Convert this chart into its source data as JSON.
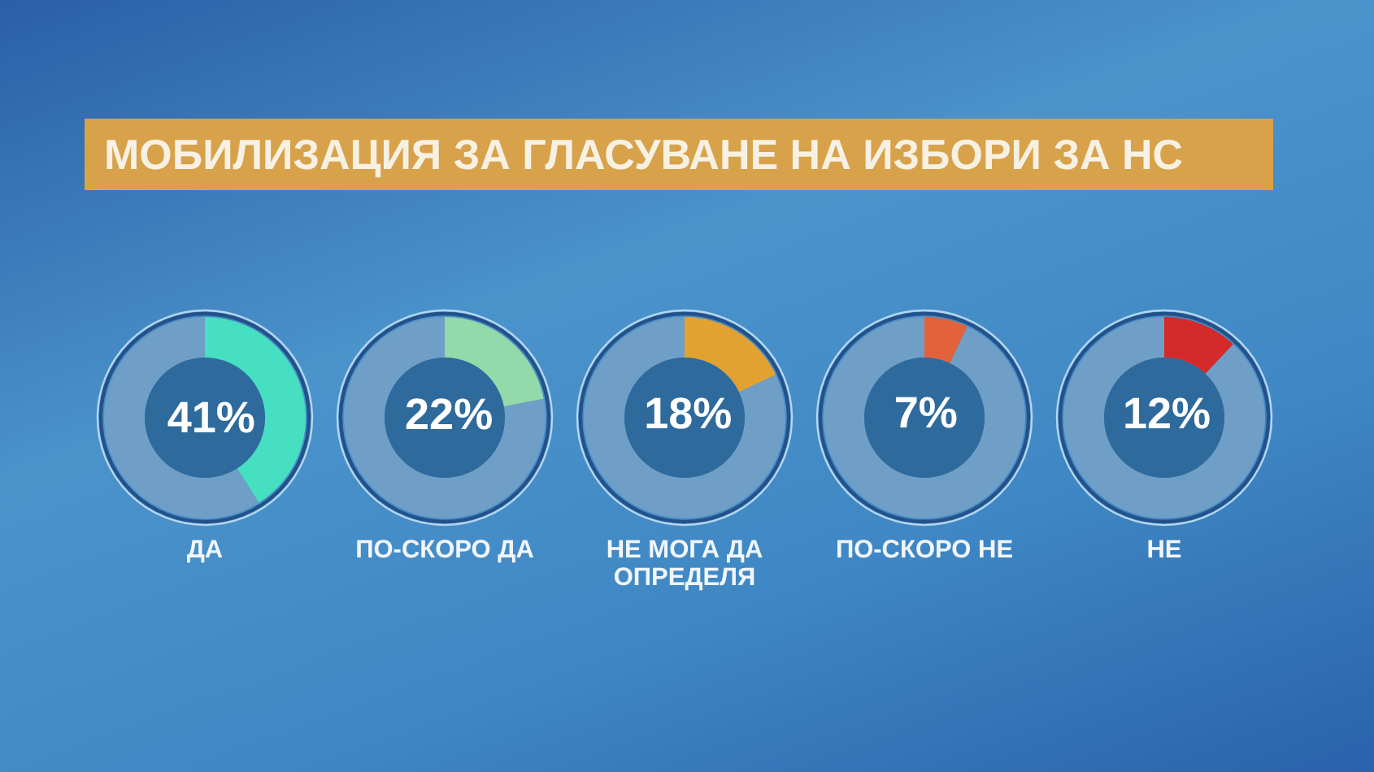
{
  "chart_data": [
    {
      "type": "other",
      "title": "МОБИЛИЗАЦИЯ ЗА ГЛАСУВАНЕ НА ИЗБОРИ ЗА НС"
    },
    {
      "type": "donut",
      "title": "ДА",
      "categories": [
        null,
        null
      ],
      "values": [
        41,
        59
      ],
      "colors": [
        "#46dfc1",
        "#6f9fc7"
      ],
      "value_labels": [
        "41%",
        null
      ]
    },
    {
      "type": "donut",
      "title": "ПО-СКОРО ДА",
      "categories": [
        null,
        null
      ],
      "values": [
        22,
        78
      ],
      "colors": [
        "#93d9a9",
        "#6f9fc7"
      ],
      "value_labels": [
        "22%",
        null
      ]
    },
    {
      "type": "donut",
      "title": "НЕ МОГА ДА ОПРЕДЕЛЯ",
      "categories": [
        null,
        null
      ],
      "values": [
        18,
        82
      ],
      "colors": [
        "#e2a232",
        "#6f9fc7"
      ],
      "value_labels": [
        "18%",
        null
      ]
    },
    {
      "type": "donut",
      "title": "ПО-СКОРО НЕ",
      "categories": [
        null,
        null
      ],
      "values": [
        7,
        93
      ],
      "colors": [
        "#e2623a",
        "#6f9fc7"
      ],
      "value_labels": [
        "7%",
        null
      ]
    },
    {
      "type": "donut",
      "title": "НЕ",
      "categories": [
        null,
        null
      ],
      "values": [
        12,
        88
      ],
      "colors": [
        "#d42a2a",
        "#6f9fc7"
      ],
      "value_labels": [
        "12%",
        null
      ]
    }
  ]
}
